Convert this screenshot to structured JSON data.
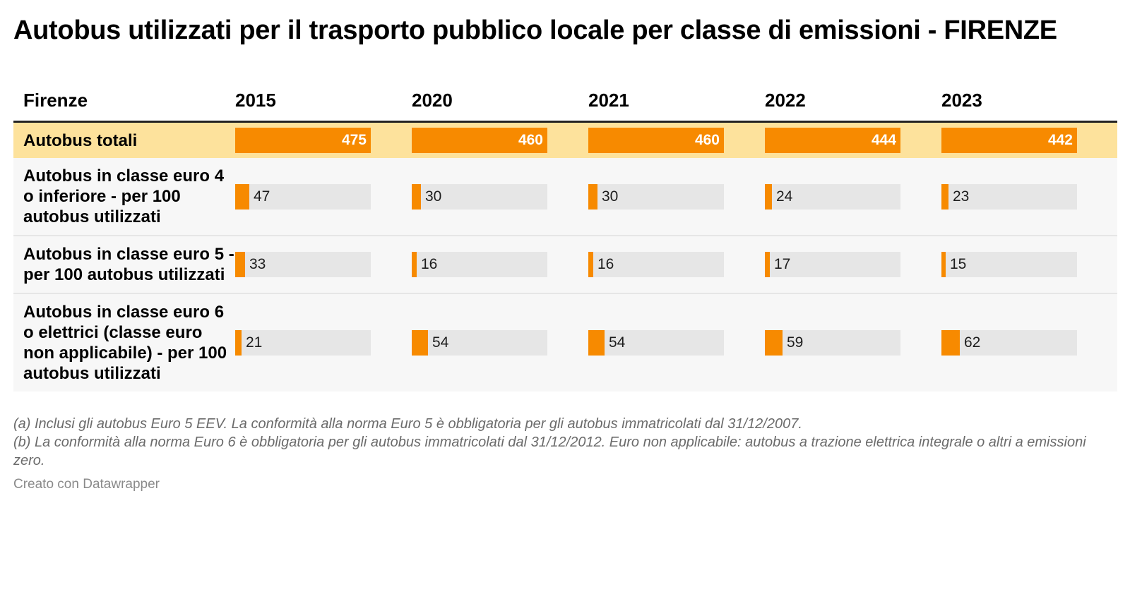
{
  "title": "Autobus utilizzati per il trasporto pubblico locale per classe di emissioni - FIRENZE",
  "header_label": "Firenze",
  "notes": [
    "(a) Inclusi gli autobus Euro 5 EEV. La conformità alla norma Euro 5 è obbligatoria per gli autobus immatricolati dal 31/12/2007.",
    "(b) La conformità alla norma Euro 6 è obbligatoria per gli autobus immatricolati dal 31/12/2012. Euro non applicabile: autobus a trazione elettrica integrale o altri a emissioni zero."
  ],
  "credit": "Creato con Datawrapper",
  "colors": {
    "bar": "#f78a00",
    "highlight_row": "#fde29c",
    "track": "#e6e6e6"
  },
  "chart_data": {
    "type": "table",
    "title": "Autobus utilizzati per il trasporto pubblico locale per classe di emissioni - FIRENZE",
    "columns": [
      "2015",
      "2020",
      "2021",
      "2022",
      "2023"
    ],
    "rows": [
      {
        "label": "Autobus totali",
        "values": [
          475,
          460,
          460,
          444,
          442
        ],
        "max": 475,
        "highlight": true
      },
      {
        "label": "Autobus in classe euro 4 o inferiore - per 100 autobus utilizzati",
        "values": [
          47,
          30,
          30,
          24,
          23
        ],
        "max": 475
      },
      {
        "label": "Autobus in classe euro 5 - per 100 autobus utilizzati",
        "values": [
          33,
          16,
          16,
          17,
          15
        ],
        "max": 475
      },
      {
        "label": "Autobus in classe euro 6 o elettrici (classe euro non applicabile) - per 100 autobus utilizzati",
        "values": [
          21,
          54,
          54,
          59,
          62
        ],
        "max": 475
      }
    ]
  }
}
